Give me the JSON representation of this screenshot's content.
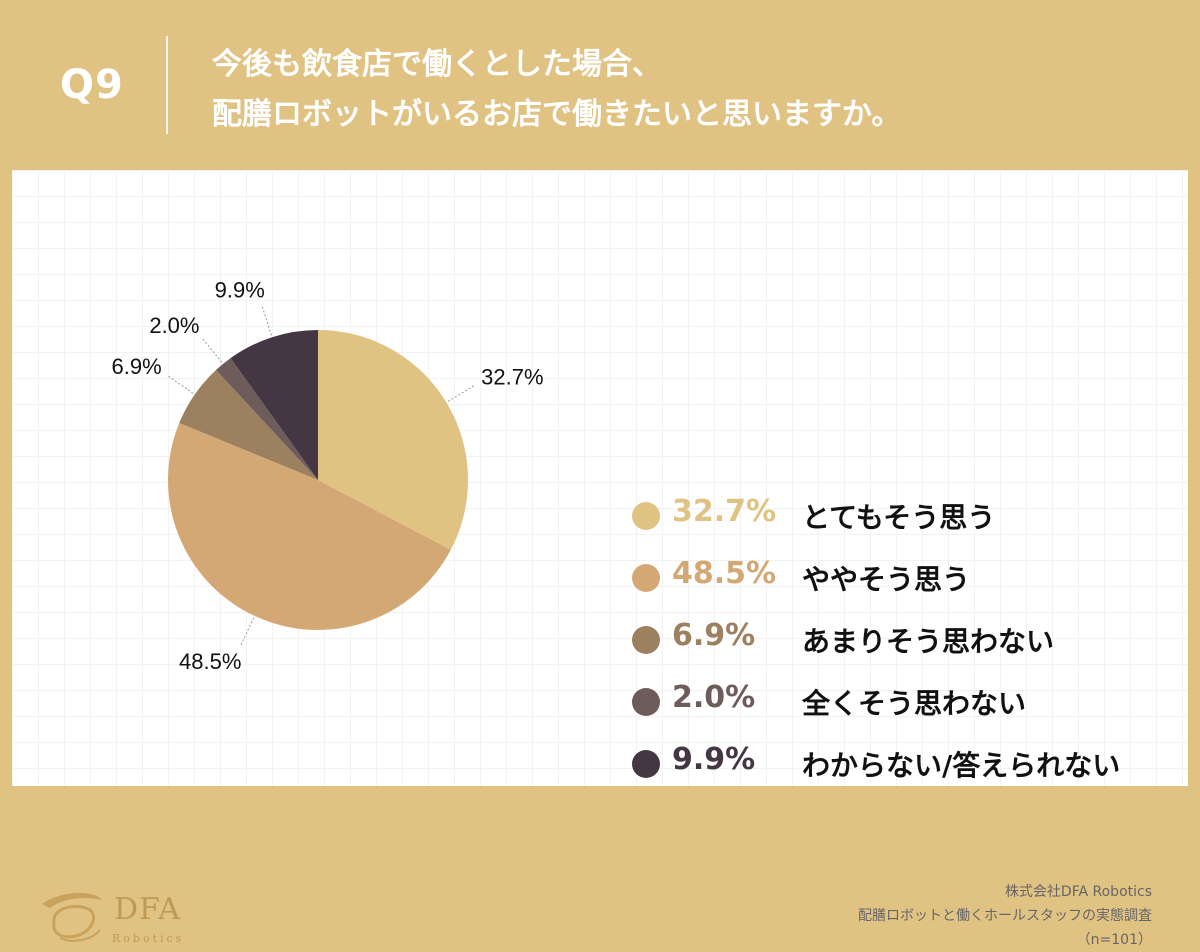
{
  "header": {
    "question_number": "Q9",
    "title_line1": "今後も飲食店で働くとした場合、",
    "title_line2": "配膳ロボットがいるお店で働きたいと思いますか。"
  },
  "chart_data": {
    "type": "pie",
    "start_angle_deg": 0,
    "direction": "clockwise",
    "slices": [
      {
        "label": "とてもそう思う",
        "value": 32.7,
        "display": "32.7%",
        "color": "#e0c382",
        "legend_pct_color": "#e0c382"
      },
      {
        "label": "ややそう思う",
        "value": 48.5,
        "display": "48.5%",
        "color": "#d4a874",
        "legend_pct_color": "#d4a874"
      },
      {
        "label": "あまりそう思わない",
        "value": 6.9,
        "display": "6.9%",
        "color": "#9c8161",
        "legend_pct_color": "#9c8161"
      },
      {
        "label": "全くそう思わない",
        "value": 2.0,
        "display": "2.0%",
        "color": "#6e5c5b",
        "legend_pct_color": "#6e5c5b"
      },
      {
        "label": "わからない/答えられない",
        "value": 9.9,
        "display": "9.9%",
        "color": "#443642",
        "legend_pct_color": "#443642"
      }
    ]
  },
  "logo": {
    "name": "DFA",
    "sub": "Robotics"
  },
  "source": {
    "company": "株式会社DFA Robotics",
    "survey": "配膳ロボットと働くホールスタッフの実態調査",
    "sample": "（n=101）"
  }
}
